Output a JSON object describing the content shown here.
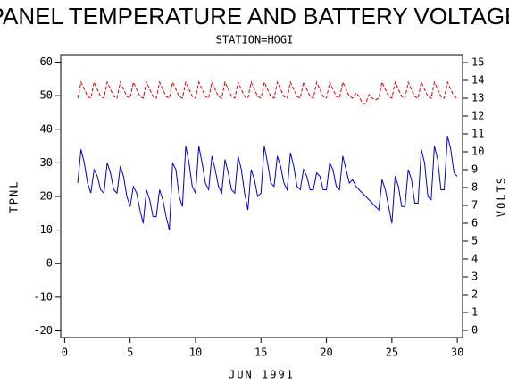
{
  "chart_data": {
    "type": "line",
    "title": "PANEL TEMPERATURE AND BATTERY VOLTAGE",
    "subtitle": "STATION=HOGI",
    "x_label": "JUN 1991",
    "y_label": "TPNL",
    "y2_label": "VOLTS",
    "xlim": [
      -0.3,
      30.4
    ],
    "xticks": [
      0,
      5,
      10,
      15,
      20,
      25,
      30
    ],
    "ylim": [
      -22,
      62
    ],
    "yticks": [
      -20,
      -10,
      0,
      10,
      20,
      30,
      40,
      50,
      60
    ],
    "y2lim": [
      -0.4,
      15.4
    ],
    "y2ticks": [
      0,
      1,
      2,
      3,
      4,
      5,
      6,
      7,
      8,
      9,
      10,
      11,
      12,
      13,
      14,
      15
    ],
    "x": [
      1,
      1.25,
      1.5,
      1.75,
      2,
      2.25,
      2.5,
      2.75,
      3,
      3.25,
      3.5,
      3.75,
      4,
      4.25,
      4.5,
      4.75,
      5,
      5.25,
      5.5,
      5.75,
      6,
      6.25,
      6.5,
      6.75,
      7,
      7.25,
      7.5,
      7.75,
      8,
      8.25,
      8.5,
      8.75,
      9,
      9.25,
      9.5,
      9.75,
      10,
      10.25,
      10.5,
      10.75,
      11,
      11.25,
      11.5,
      11.75,
      12,
      12.25,
      12.5,
      12.75,
      13,
      13.25,
      13.5,
      13.75,
      14,
      14.25,
      14.5,
      14.75,
      15,
      15.25,
      15.5,
      15.75,
      16,
      16.25,
      16.5,
      16.75,
      17,
      17.25,
      17.5,
      17.75,
      18,
      18.25,
      18.5,
      18.75,
      19,
      19.25,
      19.5,
      19.75,
      20,
      20.25,
      20.5,
      20.75,
      21,
      21.25,
      21.5,
      21.75,
      22,
      22.25,
      22.5,
      22.75,
      23,
      23.25,
      23.5,
      23.75,
      24,
      24.25,
      24.5,
      24.75,
      25,
      25.25,
      25.5,
      25.75,
      26,
      26.25,
      26.5,
      26.75,
      27,
      27.25,
      27.5,
      27.75,
      28,
      28.25,
      28.5,
      28.75,
      29,
      29.25,
      29.5,
      29.75,
      30
    ],
    "series": [
      {
        "color": "#0000cc",
        "dash": false,
        "values": [
          24,
          34,
          30,
          24,
          21,
          28,
          26,
          22,
          21,
          30,
          27,
          22,
          21,
          29,
          26,
          20,
          17,
          23,
          21,
          16,
          12,
          22,
          19,
          14,
          14,
          22,
          19,
          14,
          10,
          30,
          28,
          20,
          17,
          35,
          30,
          23,
          21,
          35,
          30,
          24,
          22,
          32,
          28,
          23,
          21,
          31,
          27,
          22,
          21,
          32,
          28,
          21,
          16,
          28,
          25,
          20,
          21,
          35,
          30,
          24,
          23,
          32,
          29,
          24,
          22,
          33,
          29,
          23,
          22,
          28,
          26,
          22,
          22,
          27,
          26,
          22,
          22,
          30,
          28,
          23,
          22,
          32,
          28,
          24,
          25,
          23,
          22,
          21,
          20,
          19,
          18,
          17,
          16,
          25,
          22,
          17,
          12,
          26,
          23,
          17,
          17,
          28,
          25,
          18,
          18,
          34,
          30,
          20,
          19,
          35,
          31,
          22,
          22,
          38,
          34,
          27,
          26
        ]
      },
      {
        "color": "#dd0000",
        "dash": true,
        "axis": "y2",
        "values": [
          13.0,
          13.9,
          13.5,
          13.1,
          13.0,
          13.9,
          13.5,
          13.1,
          13.0,
          13.9,
          13.5,
          13.1,
          13.0,
          13.9,
          13.5,
          13.1,
          13.0,
          13.9,
          13.5,
          13.1,
          13.0,
          13.9,
          13.5,
          13.1,
          13.0,
          13.9,
          13.5,
          13.1,
          13.0,
          13.9,
          13.5,
          13.1,
          13.0,
          13.9,
          13.5,
          13.1,
          13.0,
          13.9,
          13.5,
          13.1,
          13.0,
          13.9,
          13.5,
          13.1,
          13.0,
          13.9,
          13.5,
          13.1,
          13.0,
          13.9,
          13.5,
          13.1,
          13.0,
          13.9,
          13.5,
          13.1,
          13.0,
          13.9,
          13.5,
          13.1,
          13.0,
          13.9,
          13.5,
          13.1,
          13.0,
          13.9,
          13.5,
          13.1,
          13.0,
          13.9,
          13.5,
          13.1,
          13.0,
          13.9,
          13.5,
          13.1,
          13.0,
          13.9,
          13.5,
          13.1,
          13.0,
          13.9,
          13.5,
          13.1,
          13.0,
          13.3,
          13.1,
          12.7,
          12.7,
          13.2,
          13.0,
          12.9,
          13.0,
          13.9,
          13.5,
          13.1,
          13.0,
          13.9,
          13.5,
          13.1,
          13.0,
          13.9,
          13.5,
          13.1,
          13.0,
          13.9,
          13.5,
          13.1,
          13.0,
          13.9,
          13.5,
          13.1,
          13.0,
          13.9,
          13.5,
          13.1,
          13.0
        ]
      }
    ]
  }
}
